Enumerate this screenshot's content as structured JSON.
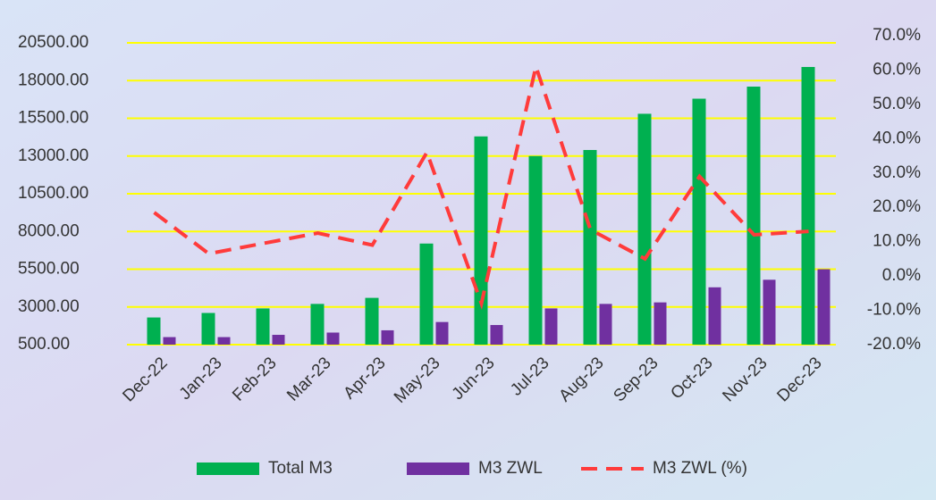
{
  "chart_data": {
    "type": "bar_line",
    "categories": [
      "Dec-22",
      "Jan-23",
      "Feb-23",
      "Mar-23",
      "Apr-23",
      "May-23",
      "Jun-23",
      "Jul-23",
      "Aug-23",
      "Sep-23",
      "Oct-23",
      "Nov-23",
      "Dec-23"
    ],
    "series": [
      {
        "name": "Total M3",
        "color": "#00b050",
        "kind": "bar",
        "values": [
          2300,
          2600,
          2900,
          3200,
          3600,
          7200,
          14300,
          13000,
          13400,
          15800,
          16800,
          17600,
          18900
        ]
      },
      {
        "name": "M3 ZWL",
        "color": "#7030a0",
        "kind": "bar",
        "values": [
          1000,
          1000,
          1150,
          1300,
          1450,
          2000,
          1800,
          2900,
          3200,
          3300,
          4300,
          4800,
          5500
        ]
      },
      {
        "name": "M3 ZWL (%)",
        "color": "#ff3b3b",
        "kind": "line",
        "axis": "y2",
        "values": [
          18.5,
          6.5,
          9.5,
          12.5,
          9,
          36,
          -8,
          61,
          13.5,
          5,
          29,
          12,
          13
        ]
      }
    ],
    "ylim": [
      500,
      20500
    ],
    "yticks": [
      {
        "value": 500,
        "label": "500.00"
      },
      {
        "value": 3000,
        "label": "3000.00"
      },
      {
        "value": 5500,
        "label": "5500.00"
      },
      {
        "value": 8000,
        "label": "8000.00"
      },
      {
        "value": 10500,
        "label": "10500.00"
      },
      {
        "value": 13000,
        "label": "13000.00"
      },
      {
        "value": 15500,
        "label": "15500.00"
      },
      {
        "value": 18000,
        "label": "18000.00"
      },
      {
        "value": 20500,
        "label": "20500.00"
      }
    ],
    "y2lim": [
      -20,
      70
    ],
    "y2ticks": [
      {
        "value": -20,
        "label": "-20.0%"
      },
      {
        "value": -10,
        "label": "-10.0%"
      },
      {
        "value": 0,
        "label": "0.0%"
      },
      {
        "value": 10,
        "label": "10.0%"
      },
      {
        "value": 20,
        "label": "20.0%"
      },
      {
        "value": 30,
        "label": "30.0%"
      },
      {
        "value": 40,
        "label": "40.0%"
      },
      {
        "value": 50,
        "label": "50.0%"
      },
      {
        "value": 60,
        "label": "60.0%"
      },
      {
        "value": 70,
        "label": "70.0%"
      }
    ],
    "grid": true,
    "grid_color": "#ffff00",
    "legend": "bottom"
  }
}
